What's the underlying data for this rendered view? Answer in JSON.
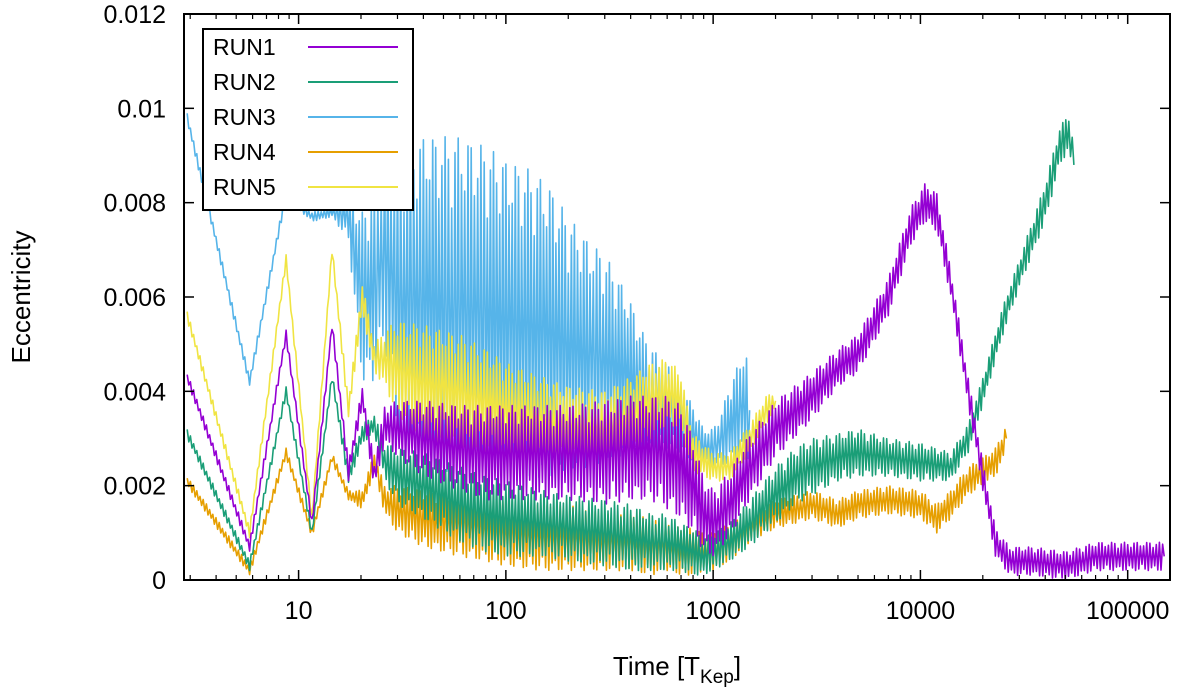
{
  "chart_data": {
    "type": "line",
    "title": "",
    "xlabel_main": "Time [T",
    "xlabel_sub": "Kep",
    "xlabel_close": "]",
    "ylabel": "Eccentricity",
    "xscale": "log",
    "xlim": [
      2.8,
      160000
    ],
    "ylim": [
      0,
      0.012
    ],
    "xticks": [
      10,
      100,
      1000,
      10000,
      100000
    ],
    "xtick_labels": [
      "10",
      "100",
      "1000",
      "10000",
      "100000"
    ],
    "yticks": [
      0,
      0.002,
      0.004,
      0.006,
      0.008,
      0.01,
      0.012
    ],
    "ytick_labels": [
      "0",
      "0.002",
      "0.004",
      "0.006",
      "0.008",
      "0.01",
      "0.012"
    ],
    "grid": false,
    "legend_position": "top-left",
    "series": [
      {
        "name": "RUN1",
        "color": "#9400d3",
        "x": [
          2.9,
          5.8,
          8.7,
          11.6,
          14.5,
          17.4,
          20.3,
          23.2,
          26,
          30,
          40,
          60,
          80,
          100,
          150,
          200,
          300,
          400,
          500,
          600,
          700,
          800,
          900,
          1000,
          1200,
          1500,
          2000,
          3000,
          4000,
          5000,
          7000,
          9000,
          10500,
          12000,
          14000,
          17000,
          20000,
          23000,
          27000,
          35000,
          50000,
          70000,
          100000,
          150000
        ],
        "y": [
          0.0043,
          0.0007,
          0.0052,
          0.0012,
          0.0054,
          0.0023,
          0.0039,
          0.0022,
          0.0033,
          0.0032,
          0.003,
          0.0028,
          0.0027,
          0.0027,
          0.0027,
          0.0027,
          0.0027,
          0.0028,
          0.0028,
          0.0027,
          0.0025,
          0.002,
          0.0014,
          0.0012,
          0.0016,
          0.0024,
          0.0032,
          0.0039,
          0.0045,
          0.0048,
          0.006,
          0.0075,
          0.008,
          0.0078,
          0.0063,
          0.004,
          0.0022,
          0.0008,
          0.0004,
          0.0004,
          0.0003,
          0.0005,
          0.0005,
          0.0005
        ],
        "spread": [
          0.0001,
          0.0001,
          0.0001,
          0.0001,
          0.0001,
          0.0002,
          0.0002,
          0.0003,
          0.0004,
          0.0006,
          0.0008,
          0.0009,
          0.001,
          0.001,
          0.001,
          0.001,
          0.0011,
          0.0011,
          0.0011,
          0.0012,
          0.0012,
          0.001,
          0.0008,
          0.0007,
          0.0007,
          0.0007,
          0.0006,
          0.0005,
          0.0004,
          0.0004,
          0.0004,
          0.0004,
          0.0004,
          0.0004,
          0.0003,
          0.0003,
          0.0003,
          0.0003,
          0.0003,
          0.0003,
          0.0003,
          0.0003,
          0.0003,
          0.0003
        ]
      },
      {
        "name": "RUN2",
        "color": "#1a9e77",
        "x": [
          2.9,
          5.8,
          8.7,
          11.6,
          14.5,
          17.4,
          20.3,
          23.2,
          26,
          30,
          40,
          60,
          80,
          100,
          150,
          200,
          300,
          400,
          500,
          600,
          700,
          800,
          900,
          1000,
          1200,
          1500,
          2000,
          2500,
          3000,
          4000,
          5000,
          7000,
          10000,
          14000,
          17000,
          20000,
          25000,
          30000,
          40000,
          47000,
          52000,
          55000
        ],
        "y": [
          0.0031,
          0.0003,
          0.004,
          0.001,
          0.0043,
          0.0022,
          0.0031,
          0.0033,
          0.0025,
          0.0022,
          0.002,
          0.0016,
          0.0014,
          0.0013,
          0.0012,
          0.0011,
          0.001,
          0.0009,
          0.0008,
          0.0008,
          0.0007,
          0.0006,
          0.0005,
          0.0006,
          0.0008,
          0.0012,
          0.0018,
          0.0022,
          0.0024,
          0.0026,
          0.0027,
          0.0026,
          0.0025,
          0.0024,
          0.003,
          0.004,
          0.0055,
          0.0065,
          0.008,
          0.0092,
          0.0095,
          0.0088
        ],
        "spread": [
          0.0001,
          0.0001,
          0.0001,
          0.0001,
          0.0001,
          0.0002,
          0.0002,
          0.0002,
          0.0004,
          0.0006,
          0.0007,
          0.0008,
          0.0008,
          0.0008,
          0.0007,
          0.0007,
          0.0007,
          0.0007,
          0.0006,
          0.0006,
          0.0005,
          0.0005,
          0.0004,
          0.0004,
          0.0004,
          0.0005,
          0.0006,
          0.0006,
          0.0006,
          0.0005,
          0.0005,
          0.0004,
          0.0004,
          0.0003,
          0.0003,
          0.0003,
          0.0003,
          0.0003,
          0.0004,
          0.0004,
          0.0004,
          0.0004
        ]
      },
      {
        "name": "RUN3",
        "color": "#56b4e9",
        "x": [
          2.9,
          5.8,
          8.7,
          11.6,
          14.5,
          17.4,
          20.3,
          23.2,
          26,
          30,
          40,
          50,
          60,
          80,
          100,
          130,
          160,
          200,
          250,
          300,
          350,
          400,
          450,
          500,
          550,
          600,
          700,
          800,
          900,
          1000,
          1100,
          1200,
          1300,
          1400,
          1500
        ],
        "y": [
          0.0098,
          0.0042,
          0.0082,
          0.0077,
          0.0078,
          0.0077,
          0.006,
          0.0062,
          0.007,
          0.006,
          0.006,
          0.0058,
          0.0058,
          0.0057,
          0.0055,
          0.0054,
          0.0053,
          0.005,
          0.0048,
          0.0047,
          0.0045,
          0.0043,
          0.004,
          0.0038,
          0.0037,
          0.0037,
          0.0034,
          0.0031,
          0.0028,
          0.0028,
          0.003,
          0.0033,
          0.0035,
          0.0037,
          0.0036
        ],
        "spread": [
          0.0001,
          0.0001,
          0.0001,
          0.0001,
          0.0001,
          0.0005,
          0.0018,
          0.002,
          0.002,
          0.003,
          0.0034,
          0.0036,
          0.0036,
          0.0035,
          0.0034,
          0.0033,
          0.0031,
          0.0027,
          0.0024,
          0.0022,
          0.0019,
          0.0016,
          0.0013,
          0.0012,
          0.001,
          0.0009,
          0.0007,
          0.0006,
          0.0004,
          0.0004,
          0.0006,
          0.0008,
          0.001,
          0.0012,
          0.001
        ]
      },
      {
        "name": "RUN4",
        "color": "#e69f00",
        "x": [
          2.9,
          5.8,
          8.7,
          11.6,
          14.5,
          17.4,
          20.3,
          23.2,
          26,
          30,
          40,
          60,
          80,
          100,
          150,
          200,
          300,
          400,
          500,
          600,
          700,
          800,
          900,
          1000,
          1200,
          1500,
          2000,
          2500,
          3000,
          4000,
          5000,
          7000,
          10000,
          12000,
          14000,
          17000,
          20000,
          23000,
          26000
        ],
        "y": [
          0.0021,
          0.0002,
          0.0027,
          0.001,
          0.0026,
          0.0018,
          0.0017,
          0.0025,
          0.0017,
          0.0015,
          0.0013,
          0.0012,
          0.0011,
          0.001,
          0.0009,
          0.0009,
          0.0008,
          0.0008,
          0.0007,
          0.0007,
          0.0006,
          0.0006,
          0.0006,
          0.0006,
          0.0008,
          0.0011,
          0.0014,
          0.0015,
          0.0016,
          0.0014,
          0.0016,
          0.0017,
          0.0016,
          0.0013,
          0.0016,
          0.0021,
          0.0023,
          0.0025,
          0.003
        ],
        "spread": [
          0.0001,
          0.0001,
          0.0001,
          0.0001,
          0.0001,
          0.0001,
          0.0002,
          0.0002,
          0.0003,
          0.0005,
          0.0006,
          0.0007,
          0.0007,
          0.0007,
          0.0007,
          0.0007,
          0.0006,
          0.0006,
          0.0006,
          0.0005,
          0.0005,
          0.0005,
          0.0004,
          0.0004,
          0.0004,
          0.0003,
          0.0003,
          0.0003,
          0.0003,
          0.0003,
          0.0003,
          0.0003,
          0.0003,
          0.0003,
          0.0003,
          0.0003,
          0.0003,
          0.0003,
          0.0003
        ]
      },
      {
        "name": "RUN5",
        "color": "#f0e442",
        "x": [
          2.9,
          5.8,
          8.7,
          11.6,
          14.5,
          17.4,
          20.3,
          23.2,
          26,
          30,
          40,
          60,
          80,
          100,
          150,
          200,
          300,
          400,
          500,
          600,
          700,
          750,
          800,
          1000,
          1200,
          1500,
          1800,
          2000
        ],
        "y": [
          0.0056,
          0.001,
          0.0068,
          0.0013,
          0.007,
          0.0036,
          0.006,
          0.0047,
          0.0047,
          0.0045,
          0.0042,
          0.004,
          0.0038,
          0.0036,
          0.0034,
          0.0033,
          0.0032,
          0.0035,
          0.0038,
          0.004,
          0.0038,
          0.0032,
          0.0027,
          0.0024,
          0.0024,
          0.003,
          0.0036,
          0.0038
        ],
        "spread": [
          0.0001,
          0.0001,
          0.0001,
          0.0001,
          0.0001,
          0.0002,
          0.0003,
          0.0003,
          0.0006,
          0.001,
          0.0012,
          0.0012,
          0.0011,
          0.001,
          0.0009,
          0.0008,
          0.0008,
          0.0008,
          0.0008,
          0.0007,
          0.0006,
          0.0005,
          0.0004,
          0.0003,
          0.0003,
          0.0003,
          0.0003,
          0.0002
        ]
      }
    ]
  }
}
